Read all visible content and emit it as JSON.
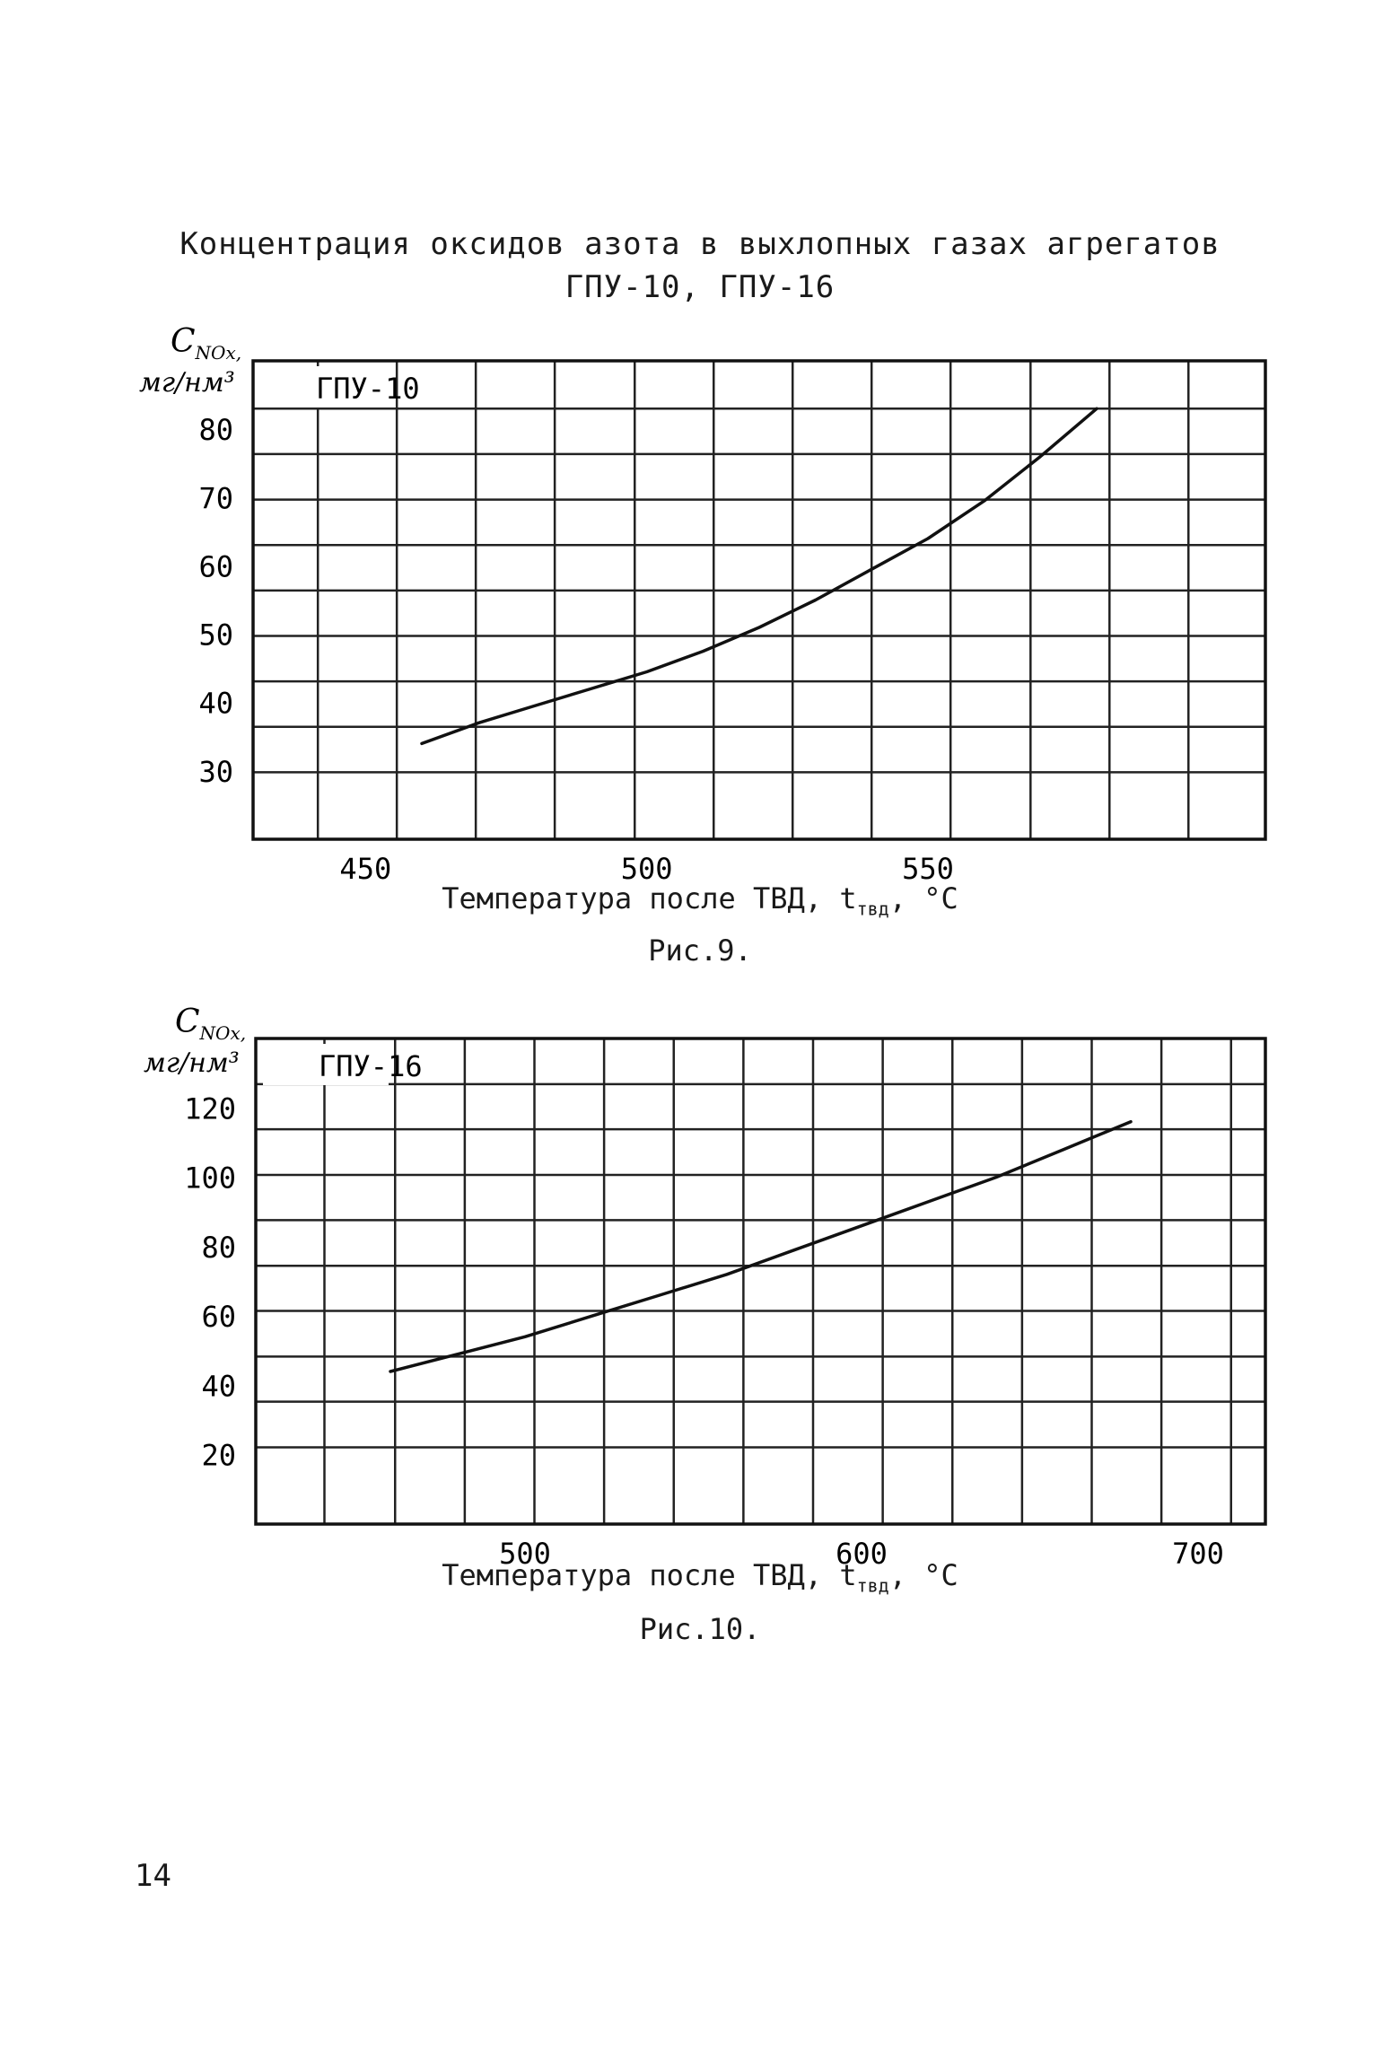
{
  "document": {
    "title_line1": "Концентрация оксидов азота в выхлопных газах агрегатов",
    "title_line2": "ГПУ-10, ГПУ-16",
    "page_number": "14"
  },
  "chart_data": [
    {
      "type": "line",
      "inset_label": "ГПУ-10",
      "ylabel_top": "C",
      "ylabel_sub": "NOx",
      "ylabel_units": "мг/нм³",
      "xlabel": "Температура после ТВД, t",
      "xlabel_sub": "твд",
      "xlabel_unit": ", °C",
      "caption": "Рис.9.",
      "xlim": [
        430,
        610
      ],
      "ylim": [
        20,
        90
      ],
      "xticks": [
        450,
        500,
        550
      ],
      "yticks": [
        30,
        40,
        50,
        60,
        70,
        80
      ],
      "grid": true,
      "series": [
        {
          "x": [
            460,
            470,
            480,
            490,
            500,
            510,
            520,
            530,
            540,
            550,
            560,
            570,
            580
          ],
          "y": [
            34,
            37,
            39.5,
            42,
            44.5,
            47.5,
            51,
            55,
            59.5,
            64,
            69.5,
            76,
            83
          ]
        }
      ]
    },
    {
      "type": "line",
      "inset_label": "ГПУ-16",
      "ylabel_top": "C",
      "ylabel_sub": "NOx",
      "ylabel_units": "мг/нм³",
      "xlabel": "Температура после ТВД, t",
      "xlabel_sub": "твд",
      "xlabel_unit": ", °C",
      "caption": "Рис.10.",
      "xlim": [
        420,
        720
      ],
      "ylim": [
        0,
        140
      ],
      "xticks": [
        500,
        600,
        700
      ],
      "yticks": [
        20,
        40,
        60,
        80,
        100,
        120
      ],
      "grid": true,
      "series": [
        {
          "x": [
            460,
            480,
            500,
            520,
            540,
            560,
            580,
            600,
            620,
            640,
            660,
            680
          ],
          "y": [
            44,
            49,
            54,
            60,
            66,
            72,
            79,
            86,
            93,
            100,
            108,
            116
          ]
        }
      ]
    }
  ]
}
